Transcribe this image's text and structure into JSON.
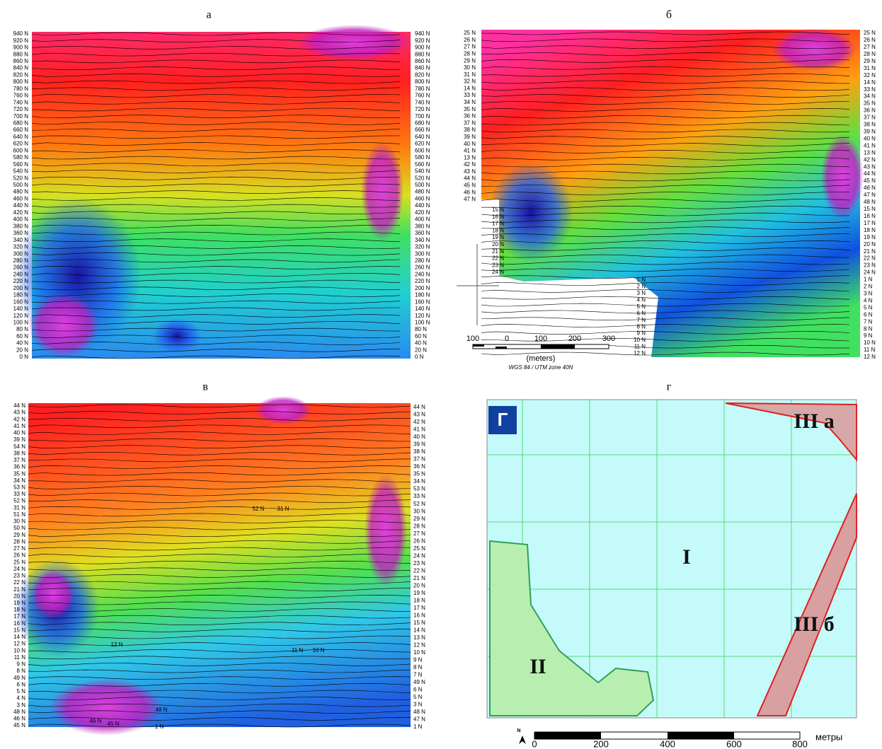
{
  "panels": [
    {
      "title": "а",
      "left_labels": [
        "940 N",
        "920 N",
        "900 N",
        "880 N",
        "860 N",
        "840 N",
        "820 N",
        "800 N",
        "780 N",
        "760 N",
        "740 N",
        "720 N",
        "700 N",
        "680 N",
        "660 N",
        "640 N",
        "620 N",
        "600 N",
        "580 N",
        "560 N",
        "540 N",
        "520 N",
        "500 N",
        "480 N",
        "460 N",
        "440 N",
        "420 N",
        "400 N",
        "380 N",
        "360 N",
        "340 N",
        "320 N",
        "300 N",
        "280 N",
        "260 N",
        "240 N",
        "220 N",
        "200 N",
        "180 N",
        "160 N",
        "140 N",
        "120 N",
        "100 N",
        "80 N",
        "60 N",
        "40 N",
        "20 N",
        "0 N"
      ]
    },
    {
      "title": "б",
      "left_labels": [
        "25 N",
        "26 N",
        "27 N",
        "28 N",
        "29 N",
        "30 N",
        "31 N",
        "32 N",
        "14 N",
        "33 N",
        "34 N",
        "35 N",
        "36 N",
        "37 N",
        "38 N",
        "39 N",
        "40 N",
        "41 N",
        "13 N",
        "42 N",
        "43 N",
        "44 N",
        "45 N",
        "46 N",
        "47 N"
      ],
      "inner_labels": [
        "15 N",
        "16 N",
        "17 N",
        "18 N",
        "19 N",
        "20 N",
        "21 N",
        "22 N",
        "23 N",
        "24 N"
      ],
      "bottom_labels": [
        "1 N",
        "2 N",
        "3 N",
        "4 N",
        "5 N",
        "6 N",
        "7 N",
        "8 N",
        "9 N",
        "10 N",
        "11 N",
        "12 N"
      ],
      "right_labels": [
        "25 N",
        "26 N",
        "27 N",
        "28 N",
        "29 N",
        "31 N",
        "32 N",
        "14 N",
        "33 N",
        "34 N",
        "35 N",
        "36 N",
        "37 N",
        "38 N",
        "39 N",
        "40 N",
        "41 N",
        "13 N",
        "42 N",
        "43 N",
        "44 N",
        "45 N",
        "46 N",
        "47 N",
        "48 N",
        "15 N",
        "16 N",
        "17 N",
        "18 N",
        "19 N",
        "20 N",
        "21 N",
        "22 N",
        "23 N",
        "24 N",
        "1 N",
        "2 N",
        "3 N",
        "4 N",
        "5 N",
        "6 N",
        "7 N",
        "8 N",
        "9 N",
        "10 N",
        "11 N",
        "12 N"
      ],
      "scale": {
        "ticks": [
          "100",
          "0",
          "100",
          "200",
          "300"
        ],
        "unit": "(meters)",
        "projection": "WGS 84 / UTM zone 40N"
      }
    },
    {
      "title": "в",
      "left_labels": [
        "44 N",
        "43 N",
        "42 N",
        "41 N",
        "40 N",
        "39 N",
        "54 N",
        "38 N",
        "37 N",
        "36 N",
        "35 N",
        "34 N",
        "53 N",
        "33 N",
        "52 N",
        "31 N",
        "51 N",
        "30 N",
        "50 N",
        "29 N",
        "28 N",
        "27 N",
        "26 N",
        "25 N",
        "24 N",
        "23 N",
        "22 N",
        "21 N",
        "20 N",
        "19 N",
        "18 N",
        "17 N",
        "16 N",
        "15 N",
        "14 N",
        "12 N",
        "10 N",
        "11 N",
        "9 N",
        "8 N",
        "49 N",
        "6 N",
        "5 N",
        "4 N",
        "3 N",
        "48 N",
        "46 N",
        "45 N"
      ],
      "right_labels": [
        "44 N",
        "43 N",
        "42 N",
        "41 N",
        "40 N",
        "39 N",
        "38 N",
        "37 N",
        "36 N",
        "35 N",
        "34 N",
        "53 N",
        "33 N",
        "52 N",
        "30 N",
        "29 N",
        "28 N",
        "27 N",
        "26 N",
        "25 N",
        "24 N",
        "23 N",
        "22 N",
        "21 N",
        "20 N",
        "19 N",
        "18 N",
        "17 N",
        "16 N",
        "15 N",
        "14 N",
        "13 N",
        "12 N",
        "10 N",
        "9 N",
        "8 N",
        "7 N",
        "49 N",
        "6 N",
        "5 N",
        "3 N",
        "48 N",
        "47 N",
        "1 N"
      ],
      "inner_labels": [
        "52 N",
        "31 N",
        "12 N",
        "11 N",
        "10 N",
        "46 N",
        "45 N",
        "48 N",
        "1 N"
      ]
    },
    {
      "title": "г",
      "badge": "Г",
      "zones": [
        "I",
        "II",
        "III а",
        "III б"
      ],
      "scale": {
        "ticks": [
          "0",
          "200",
          "400",
          "600",
          "800"
        ],
        "unit": "метры",
        "north": "N"
      }
    }
  ]
}
